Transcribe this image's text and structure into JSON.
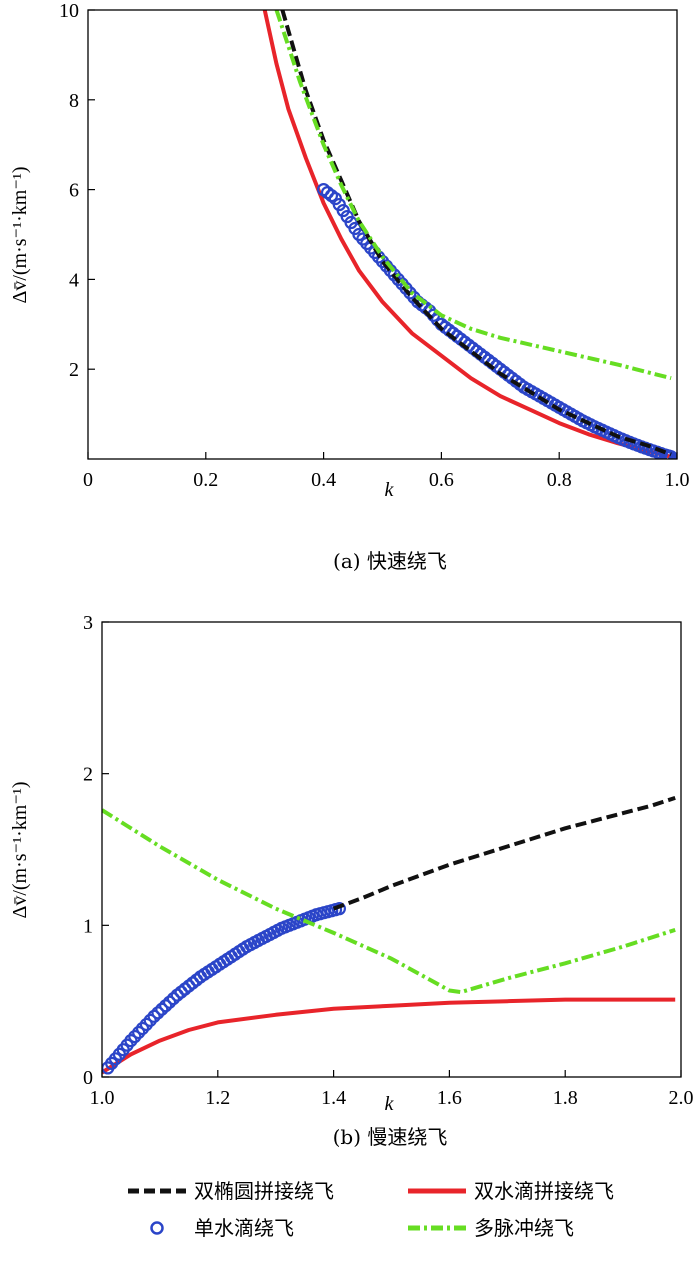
{
  "chart_data": [
    {
      "type": "line",
      "caption": "(a) 快速绕飞",
      "xlabel": "k",
      "ylabel": "Δv̄/(m·s⁻¹·km⁻¹)",
      "xlim": [
        0,
        1.0
      ],
      "ylim": [
        0,
        10
      ],
      "xticks": [
        "0",
        "0.2",
        "0.4",
        "0.6",
        "0.8",
        "1.0"
      ],
      "yticks": [
        "2",
        "4",
        "6",
        "8",
        "10"
      ],
      "series": [
        {
          "name": "双椭圆拼接绕飞",
          "color": "#111111",
          "style": "dash",
          "points": [
            [
              0.33,
              10.0
            ],
            [
              0.35,
              9.1
            ],
            [
              0.37,
              8.2
            ],
            [
              0.4,
              7.1
            ],
            [
              0.43,
              6.2
            ],
            [
              0.46,
              5.3
            ],
            [
              0.5,
              4.4
            ],
            [
              0.55,
              3.6
            ],
            [
              0.6,
              2.9
            ],
            [
              0.65,
              2.4
            ],
            [
              0.7,
              1.9
            ],
            [
              0.75,
              1.5
            ],
            [
              0.8,
              1.1
            ],
            [
              0.85,
              0.8
            ],
            [
              0.9,
              0.5
            ],
            [
              0.95,
              0.3
            ],
            [
              0.99,
              0.1
            ]
          ]
        },
        {
          "name": "双水滴拼接绕飞",
          "color": "#e8242a",
          "style": "solid",
          "points": [
            [
              0.3,
              10.0
            ],
            [
              0.32,
              8.8
            ],
            [
              0.34,
              7.8
            ],
            [
              0.37,
              6.7
            ],
            [
              0.4,
              5.7
            ],
            [
              0.43,
              4.9
            ],
            [
              0.46,
              4.2
            ],
            [
              0.5,
              3.5
            ],
            [
              0.55,
              2.8
            ],
            [
              0.6,
              2.3
            ],
            [
              0.65,
              1.8
            ],
            [
              0.7,
              1.4
            ],
            [
              0.75,
              1.1
            ],
            [
              0.8,
              0.8
            ],
            [
              0.85,
              0.55
            ],
            [
              0.9,
              0.35
            ],
            [
              0.95,
              0.18
            ],
            [
              0.99,
              0.05
            ]
          ]
        },
        {
          "name": "单水滴绕飞",
          "color": "#2b45c8",
          "style": "circle",
          "points": [
            [
              0.4,
              6.0
            ],
            [
              0.42,
              5.8
            ],
            [
              0.44,
              5.4
            ],
            [
              0.46,
              5.0
            ],
            [
              0.48,
              4.7
            ],
            [
              0.5,
              4.4
            ],
            [
              0.52,
              4.1
            ],
            [
              0.54,
              3.8
            ],
            [
              0.56,
              3.5
            ],
            [
              0.58,
              3.3
            ],
            [
              0.6,
              3.0
            ],
            [
              0.62,
              2.8
            ],
            [
              0.64,
              2.6
            ],
            [
              0.66,
              2.4
            ],
            [
              0.68,
              2.2
            ],
            [
              0.7,
              2.0
            ],
            [
              0.72,
              1.8
            ],
            [
              0.74,
              1.6
            ],
            [
              0.76,
              1.45
            ],
            [
              0.78,
              1.3
            ],
            [
              0.8,
              1.15
            ],
            [
              0.82,
              1.0
            ],
            [
              0.84,
              0.85
            ],
            [
              0.86,
              0.72
            ],
            [
              0.88,
              0.6
            ],
            [
              0.9,
              0.48
            ],
            [
              0.92,
              0.37
            ],
            [
              0.94,
              0.27
            ],
            [
              0.96,
              0.18
            ],
            [
              0.98,
              0.09
            ],
            [
              0.99,
              0.05
            ]
          ]
        },
        {
          "name": "多脉冲绕飞",
          "color": "#66dd22",
          "style": "dashdot",
          "points": [
            [
              0.32,
              10.0
            ],
            [
              0.34,
              9.2
            ],
            [
              0.36,
              8.4
            ],
            [
              0.38,
              7.7
            ],
            [
              0.4,
              7.0
            ],
            [
              0.43,
              6.1
            ],
            [
              0.46,
              5.3
            ],
            [
              0.5,
              4.5
            ],
            [
              0.55,
              3.7
            ],
            [
              0.6,
              3.2
            ],
            [
              0.65,
              2.9
            ],
            [
              0.7,
              2.7
            ],
            [
              0.8,
              2.4
            ],
            [
              0.9,
              2.1
            ],
            [
              0.99,
              1.8
            ]
          ]
        }
      ]
    },
    {
      "type": "line",
      "caption": "(b) 慢速绕飞",
      "xlabel": "k",
      "ylabel": "Δv̄/(m·s⁻¹·km⁻¹)",
      "xlim": [
        1.0,
        2.0
      ],
      "ylim": [
        0,
        3
      ],
      "xticks": [
        "1.0",
        "1.2",
        "1.4",
        "1.6",
        "1.8",
        "2.0"
      ],
      "yticks": [
        "0",
        "1",
        "2",
        "3"
      ],
      "series": [
        {
          "name": "双椭圆拼接绕飞",
          "color": "#111111",
          "style": "dash",
          "points": [
            [
              1.4,
              1.11
            ],
            [
              1.45,
              1.18
            ],
            [
              1.5,
              1.26
            ],
            [
              1.55,
              1.33
            ],
            [
              1.6,
              1.4
            ],
            [
              1.65,
              1.46
            ],
            [
              1.7,
              1.52
            ],
            [
              1.75,
              1.58
            ],
            [
              1.8,
              1.64
            ],
            [
              1.85,
              1.69
            ],
            [
              1.9,
              1.74
            ],
            [
              1.95,
              1.79
            ],
            [
              1.99,
              1.84
            ]
          ]
        },
        {
          "name": "双水滴拼接绕飞",
          "color": "#e8242a",
          "style": "solid",
          "points": [
            [
              1.0,
              0.03
            ],
            [
              1.05,
              0.15
            ],
            [
              1.1,
              0.24
            ],
            [
              1.15,
              0.31
            ],
            [
              1.2,
              0.36
            ],
            [
              1.3,
              0.41
            ],
            [
              1.4,
              0.45
            ],
            [
              1.5,
              0.47
            ],
            [
              1.6,
              0.49
            ],
            [
              1.7,
              0.5
            ],
            [
              1.8,
              0.51
            ],
            [
              1.9,
              0.51
            ],
            [
              1.99,
              0.51
            ]
          ]
        },
        {
          "name": "单水滴绕飞",
          "color": "#2b45c8",
          "style": "circle",
          "points": [
            [
              1.01,
              0.06
            ],
            [
              1.03,
              0.15
            ],
            [
              1.05,
              0.24
            ],
            [
              1.07,
              0.32
            ],
            [
              1.09,
              0.4
            ],
            [
              1.11,
              0.47
            ],
            [
              1.13,
              0.54
            ],
            [
              1.15,
              0.6
            ],
            [
              1.17,
              0.66
            ],
            [
              1.19,
              0.71
            ],
            [
              1.21,
              0.76
            ],
            [
              1.23,
              0.81
            ],
            [
              1.25,
              0.86
            ],
            [
              1.27,
              0.9
            ],
            [
              1.29,
              0.94
            ],
            [
              1.31,
              0.98
            ],
            [
              1.33,
              1.01
            ],
            [
              1.35,
              1.04
            ],
            [
              1.37,
              1.07
            ],
            [
              1.39,
              1.09
            ],
            [
              1.41,
              1.11
            ]
          ]
        },
        {
          "name": "多脉冲绕飞",
          "color": "#66dd22",
          "style": "dashdot",
          "points": [
            [
              1.0,
              1.76
            ],
            [
              1.1,
              1.52
            ],
            [
              1.2,
              1.3
            ],
            [
              1.3,
              1.11
            ],
            [
              1.4,
              0.95
            ],
            [
              1.5,
              0.78
            ],
            [
              1.6,
              0.57
            ],
            [
              1.62,
              0.56
            ],
            [
              1.7,
              0.65
            ],
            [
              1.8,
              0.75
            ],
            [
              1.9,
              0.86
            ],
            [
              1.99,
              0.97
            ]
          ]
        }
      ]
    }
  ],
  "legend": [
    {
      "label": "双椭圆拼接绕飞",
      "color": "#111111",
      "style": "dash"
    },
    {
      "label": "双水滴拼接绕飞",
      "color": "#e8242a",
      "style": "solid"
    },
    {
      "label": "单水滴绕飞",
      "color": "#2b45c8",
      "style": "circle"
    },
    {
      "label": "多脉冲绕飞",
      "color": "#66dd22",
      "style": "dashdot"
    }
  ]
}
